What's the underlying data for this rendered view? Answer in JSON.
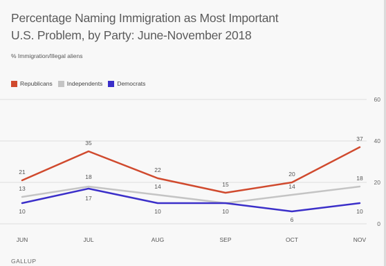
{
  "chart_data": {
    "type": "line",
    "title": "Percentage Naming Immigration as Most Important U.S. Problem, by Party: June-November 2018",
    "subtitle": "% Immigration/Illegal aliens",
    "categories": [
      "JUN",
      "JUL",
      "AUG",
      "SEP",
      "OCT",
      "NOV"
    ],
    "series": [
      {
        "name": "Republicans",
        "color": "#d04a2e",
        "values": [
          21,
          35,
          22,
          15,
          20,
          37
        ]
      },
      {
        "name": "Independents",
        "color": "#c4c4c4",
        "values": [
          13,
          18,
          14,
          10,
          14,
          18
        ]
      },
      {
        "name": "Democrats",
        "color": "#3b2fc9",
        "values": [
          10,
          17,
          10,
          10,
          6,
          10
        ]
      }
    ],
    "y_ticks": [
      "0",
      "20",
      "40",
      "60"
    ],
    "ylim": [
      0,
      60
    ],
    "legend_position": "top-left",
    "grid": true,
    "source": "GALLUP"
  }
}
